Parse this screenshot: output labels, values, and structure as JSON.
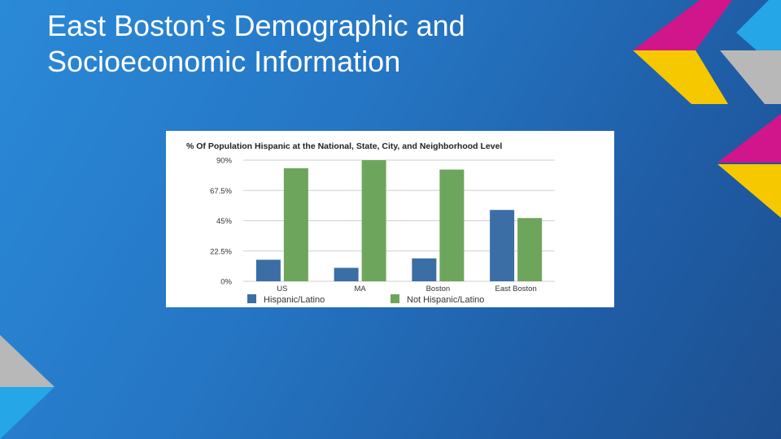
{
  "slide": {
    "title": "East Boston’s Demographic and Socioeconomic Information"
  },
  "chart_data": {
    "type": "bar",
    "title": "% Of Population Hispanic at the National, State, City, and Neighborhood Level",
    "categories": [
      "US",
      "MA",
      "Boston",
      "East Boston"
    ],
    "series": [
      {
        "name": "Hispanic/Latino",
        "values": [
          16,
          10,
          17,
          53
        ],
        "color": "#3a6ea5"
      },
      {
        "name": "Not Hispanic/Latino",
        "values": [
          84,
          90,
          83,
          47
        ],
        "color": "#6ea55c"
      }
    ],
    "ylim": [
      0,
      90
    ],
    "yticks": [
      0,
      22.5,
      45,
      67.5,
      90
    ],
    "ytick_labels": [
      "0%",
      "22.5%",
      "45%",
      "67.5%",
      "90%"
    ],
    "grid": true,
    "legend": "bottom"
  },
  "colors": {
    "magenta": "#d0168a",
    "yellow": "#f5c800",
    "gray": "#b8b8b8",
    "cyan": "#25a6e6"
  }
}
